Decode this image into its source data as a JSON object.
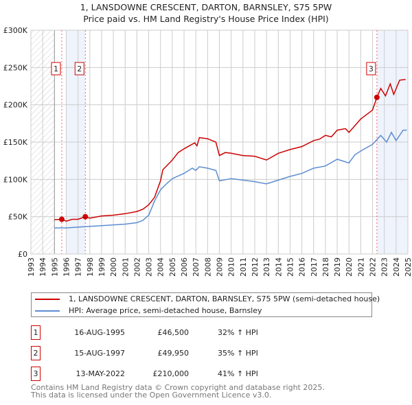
{
  "chart_data": {
    "type": "line",
    "title": "1, LANSDOWNE CRESCENT, DARTON, BARNSLEY, S75 5PW",
    "subtitle": "Price paid vs. HM Land Registry's House Price Index (HPI)",
    "xlim": [
      1993,
      2025
    ],
    "ylim": [
      0,
      300000
    ],
    "x_ticks": [
      "1993",
      "1994",
      "1995",
      "1996",
      "1997",
      "1998",
      "1999",
      "2000",
      "2001",
      "2002",
      "2003",
      "2004",
      "2005",
      "2006",
      "2007",
      "2008",
      "2009",
      "2010",
      "2011",
      "2012",
      "2013",
      "2014",
      "2015",
      "2016",
      "2017",
      "2018",
      "2019",
      "2020",
      "2021",
      "2022",
      "2023",
      "2024",
      "2025"
    ],
    "y_ticks": [
      {
        "v": 0,
        "label": "£0"
      },
      {
        "v": 50000,
        "label": "£50K"
      },
      {
        "v": 100000,
        "label": "£100K"
      },
      {
        "v": 150000,
        "label": "£150K"
      },
      {
        "v": 200000,
        "label": "£200K"
      },
      {
        "v": 250000,
        "label": "£250K"
      },
      {
        "v": 300000,
        "label": "£300K"
      }
    ],
    "grid": true,
    "series": [
      {
        "name": "1, LANSDOWNE CRESCENT, DARTON, BARNSLEY, S75 5PW (semi-detached house)",
        "color": "#cc0000",
        "points": [
          [
            1995,
            46000
          ],
          [
            1995.62,
            46500
          ],
          [
            1996,
            44000
          ],
          [
            1996.5,
            46500
          ],
          [
            1997,
            46500
          ],
          [
            1997.62,
            49950
          ],
          [
            1998,
            48000
          ],
          [
            1999,
            51000
          ],
          [
            2000,
            52000
          ],
          [
            2001,
            54000
          ],
          [
            2002,
            57000
          ],
          [
            2002.5,
            60000
          ],
          [
            2003,
            66000
          ],
          [
            2003.5,
            76000
          ],
          [
            2004,
            98000
          ],
          [
            2004.2,
            113000
          ],
          [
            2005,
            126000
          ],
          [
            2005.5,
            136000
          ],
          [
            2006,
            141000
          ],
          [
            2006.9,
            149000
          ],
          [
            2007.1,
            145000
          ],
          [
            2007.3,
            156000
          ],
          [
            2008,
            154500
          ],
          [
            2008.7,
            150000
          ],
          [
            2009,
            132000
          ],
          [
            2009.5,
            136000
          ],
          [
            2010,
            135000
          ],
          [
            2011,
            132000
          ],
          [
            2012,
            131000
          ],
          [
            2013,
            126000
          ],
          [
            2014,
            135000
          ],
          [
            2015,
            140000
          ],
          [
            2016,
            144000
          ],
          [
            2017,
            152000
          ],
          [
            2017.5,
            154000
          ],
          [
            2018,
            159000
          ],
          [
            2018.5,
            157000
          ],
          [
            2019,
            166000
          ],
          [
            2019.7,
            168000
          ],
          [
            2020,
            163000
          ],
          [
            2020.5,
            172000
          ],
          [
            2021,
            181000
          ],
          [
            2021.5,
            187000
          ],
          [
            2022,
            193000
          ],
          [
            2022.37,
            210000
          ],
          [
            2022.7,
            222000
          ],
          [
            2023.1,
            212000
          ],
          [
            2023.5,
            228000
          ],
          [
            2023.8,
            214000
          ],
          [
            2024.3,
            233000
          ],
          [
            2024.8,
            234000
          ]
        ]
      },
      {
        "name": "HPI: Average price, semi-detached house, Barnsley",
        "color": "#5b8dd0",
        "points": [
          [
            1995,
            35000
          ],
          [
            1996,
            35000
          ],
          [
            1997,
            36000
          ],
          [
            1998,
            37000
          ],
          [
            1999,
            38000
          ],
          [
            2000,
            39000
          ],
          [
            2001,
            40000
          ],
          [
            2002,
            42000
          ],
          [
            2002.5,
            45000
          ],
          [
            2003,
            52000
          ],
          [
            2003.5,
            71000
          ],
          [
            2004,
            86000
          ],
          [
            2004.5,
            94000
          ],
          [
            2005,
            101000
          ],
          [
            2006,
            108000
          ],
          [
            2006.7,
            115000
          ],
          [
            2007,
            112000
          ],
          [
            2007.3,
            117000
          ],
          [
            2008,
            115000
          ],
          [
            2008.7,
            112000
          ],
          [
            2009,
            98000
          ],
          [
            2010,
            101000
          ],
          [
            2011,
            99000
          ],
          [
            2012,
            97000
          ],
          [
            2013,
            94000
          ],
          [
            2014,
            99000
          ],
          [
            2015,
            104000
          ],
          [
            2016,
            108000
          ],
          [
            2017,
            115000
          ],
          [
            2018,
            118000
          ],
          [
            2019,
            127000
          ],
          [
            2020,
            122000
          ],
          [
            2020.5,
            133000
          ],
          [
            2021,
            138000
          ],
          [
            2022,
            147000
          ],
          [
            2022.7,
            159000
          ],
          [
            2023.2,
            150000
          ],
          [
            2023.6,
            163000
          ],
          [
            2024,
            152000
          ],
          [
            2024.6,
            166000
          ],
          [
            2024.9,
            166000
          ]
        ]
      }
    ],
    "sales": [
      {
        "n": "1",
        "x": 1995.62,
        "value": 46500
      },
      {
        "n": "2",
        "x": 1997.62,
        "value": 49950
      },
      {
        "n": "3",
        "x": 2022.37,
        "value": 210000
      }
    ],
    "hatched_range": [
      1993,
      1995
    ],
    "shaded_ranges": [
      [
        1996,
        1997.62
      ],
      [
        2022.37,
        2025
      ]
    ]
  },
  "legend": {
    "red": "1, LANSDOWNE CRESCENT, DARTON, BARNSLEY, S75 5PW (semi-detached house)",
    "blue": "HPI: Average price, semi-detached house, Barnsley"
  },
  "table": [
    {
      "n": "1",
      "date": "16-AUG-1995",
      "price": "£46,500",
      "pct": "32% ↑ HPI"
    },
    {
      "n": "2",
      "date": "15-AUG-1997",
      "price": "£49,950",
      "pct": "35% ↑ HPI"
    },
    {
      "n": "3",
      "date": "13-MAY-2022",
      "price": "£210,000",
      "pct": "41% ↑ HPI"
    }
  ],
  "footer": {
    "line1": "Contains HM Land Registry data © Crown copyright and database right 2025.",
    "line2": "This data is licensed under the Open Government Licence v3.0."
  }
}
